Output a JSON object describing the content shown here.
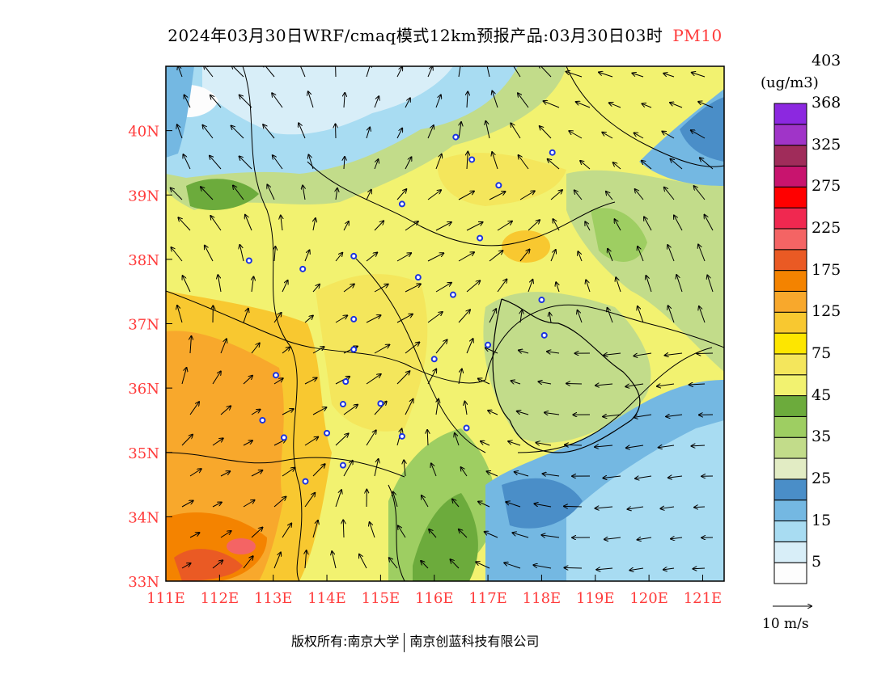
{
  "title": {
    "main": "2024年03月30日WRF/cmaq模式12km预报产品:03月30日03时",
    "variable": "PM10"
  },
  "credit": {
    "owner": "版权所有:南京大学",
    "company": "南京创蓝科技有限公司"
  },
  "legend": {
    "unit": "(ug/m3)",
    "colors": [
      "#fdfdfd",
      "#d8eef8",
      "#a8dcf2",
      "#74b8e2",
      "#4a8ec8",
      "#e2ecc4",
      "#c2dc8a",
      "#9ece62",
      "#6cab3c",
      "#f2f270",
      "#f4e65c",
      "#fde600",
      "#f8c830",
      "#f8a82c",
      "#f48300",
      "#ea5a24",
      "#f46464",
      "#f02850",
      "#ff0000",
      "#c8146e",
      "#a02c5a",
      "#a034c8",
      "#8c28e0"
    ],
    "labels": [
      "5",
      "15",
      "25",
      "35",
      "45",
      "75",
      "125",
      "175",
      "225",
      "275",
      "325",
      "368",
      "403"
    ]
  },
  "wind_key": {
    "label": "10 m/s"
  },
  "axes": {
    "x_ticks": [
      "111E",
      "112E",
      "113E",
      "114E",
      "115E",
      "116E",
      "117E",
      "118E",
      "119E",
      "120E",
      "121E"
    ],
    "y_ticks": [
      "33N",
      "34N",
      "35N",
      "36N",
      "37N",
      "38N",
      "39N",
      "40N"
    ],
    "tick_color": "#ff3b3b"
  },
  "stations": [
    {
      "lon": 116.4,
      "lat": 39.9
    },
    {
      "lon": 116.7,
      "lat": 39.55
    },
    {
      "lon": 117.2,
      "lat": 39.15
    },
    {
      "lon": 118.2,
      "lat": 39.66
    },
    {
      "lon": 115.4,
      "lat": 38.86
    },
    {
      "lon": 116.85,
      "lat": 38.33
    },
    {
      "lon": 112.55,
      "lat": 37.98
    },
    {
      "lon": 113.55,
      "lat": 37.85
    },
    {
      "lon": 114.5,
      "lat": 38.05
    },
    {
      "lon": 115.7,
      "lat": 37.72
    },
    {
      "lon": 116.35,
      "lat": 37.45
    },
    {
      "lon": 118.0,
      "lat": 37.37
    },
    {
      "lon": 114.5,
      "lat": 37.07
    },
    {
      "lon": 114.5,
      "lat": 36.6
    },
    {
      "lon": 116.0,
      "lat": 36.45
    },
    {
      "lon": 117.0,
      "lat": 36.67
    },
    {
      "lon": 118.05,
      "lat": 36.82
    },
    {
      "lon": 113.05,
      "lat": 36.2
    },
    {
      "lon": 114.35,
      "lat": 36.1
    },
    {
      "lon": 114.3,
      "lat": 35.75
    },
    {
      "lon": 115.0,
      "lat": 35.76
    },
    {
      "lon": 112.8,
      "lat": 35.5
    },
    {
      "lon": 113.2,
      "lat": 35.23
    },
    {
      "lon": 114.0,
      "lat": 35.3
    },
    {
      "lon": 115.4,
      "lat": 35.25
    },
    {
      "lon": 116.6,
      "lat": 35.38
    },
    {
      "lon": 114.3,
      "lat": 34.8
    },
    {
      "lon": 113.6,
      "lat": 34.55
    }
  ]
}
